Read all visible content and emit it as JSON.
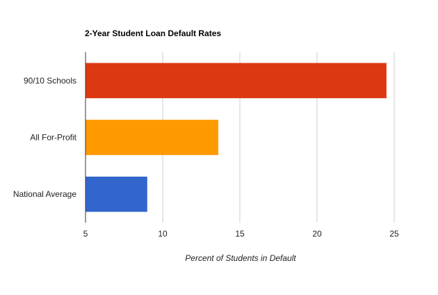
{
  "chart_data": {
    "type": "bar",
    "orientation": "horizontal",
    "title": "2-Year Student Loan Default Rates",
    "categories": [
      "90/10 Schools",
      "All For-Profit",
      "National Average"
    ],
    "values": [
      24.5,
      13.6,
      9.0
    ],
    "colors": [
      "#dc3912",
      "#ff9900",
      "#3366cc"
    ],
    "xlabel": "Percent of Students in Default",
    "ylabel": "",
    "xlim": [
      5,
      27
    ],
    "xticks": [
      5,
      10,
      15,
      20,
      25
    ],
    "grid": true,
    "legend": "none"
  }
}
